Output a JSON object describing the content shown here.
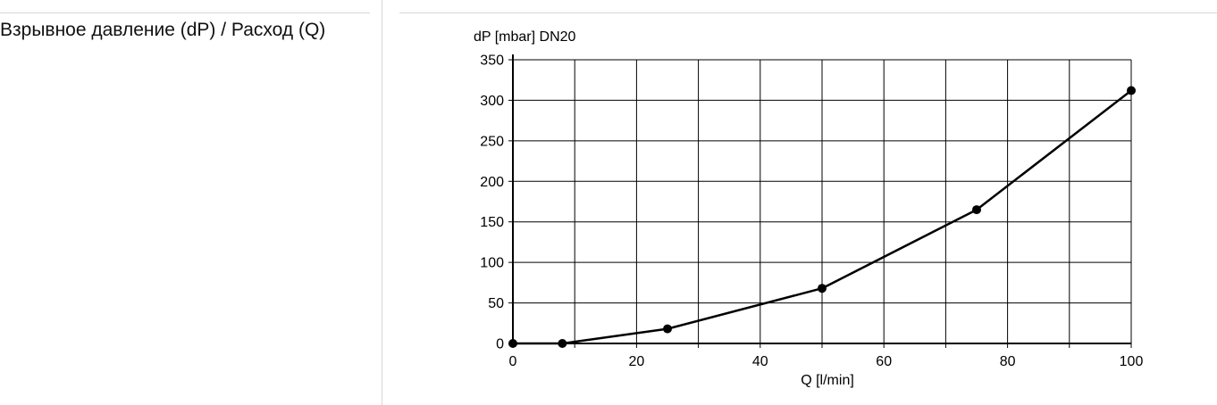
{
  "row": {
    "label": "Взрывное давление (dP) / Расход (Q)"
  },
  "chart_data": {
    "type": "line",
    "ylabel": "dP [mbar] DN20",
    "xlabel": "Q [l/min]",
    "xlim": [
      0,
      100
    ],
    "ylim": [
      0,
      350
    ],
    "x_ticks": [
      0,
      20,
      40,
      60,
      80,
      100
    ],
    "y_ticks": [
      0,
      50,
      100,
      150,
      200,
      250,
      300,
      350
    ],
    "grid": true,
    "series": [
      {
        "color": "#000000",
        "points": [
          {
            "x": 0,
            "y": 0
          },
          {
            "x": 8,
            "y": 0
          },
          {
            "x": 25,
            "y": 18
          },
          {
            "x": 50,
            "y": 68
          },
          {
            "x": 75,
            "y": 165
          },
          {
            "x": 100,
            "y": 312
          }
        ]
      }
    ]
  }
}
